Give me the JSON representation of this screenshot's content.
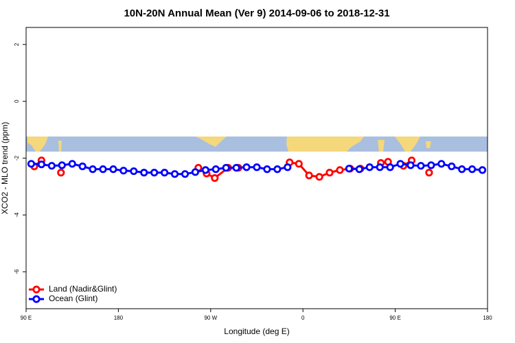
{
  "chart_data": {
    "type": "line",
    "title": "10N-20N Annual Mean (Ver 9)   2014-09-06 to 2018-12-31",
    "xlabel": "Longitude (deg E)",
    "ylabel": "XCO2 - MLO trend (ppm)",
    "xlim": [
      90,
      540
    ],
    "ylim": [
      -7.3,
      2.6
    ],
    "xticks": [
      {
        "value": 90,
        "label": "90 E"
      },
      180,
      {
        "value": 270,
        "label": "90 W"
      },
      {
        "value": 360,
        "label": "0"
      },
      {
        "value": 450,
        "label": "90 E"
      },
      {
        "value": 540,
        "label": "180"
      }
    ],
    "yticks": [
      2,
      0,
      -2,
      -4,
      -6
    ],
    "legend": "bottom-left",
    "series": [
      {
        "name": "Land (Nadir&Glint)",
        "color": "#ff0000",
        "x": [
          98,
          105,
          115,
          124,
          190,
          258,
          266,
          274,
          287,
          297,
          320,
          347,
          356,
          366,
          376,
          386,
          396,
          406,
          416,
          426,
          436,
          443,
          450,
          458,
          466,
          475,
          483
        ],
        "values": [
          -2.29,
          -2.08,
          null,
          -2.51,
          null,
          -2.34,
          -2.54,
          -2.7,
          -2.34,
          -2.34,
          null,
          -2.15,
          -2.2,
          -2.61,
          -2.66,
          -2.51,
          -2.42,
          -2.37,
          -2.37,
          null,
          -2.17,
          -2.13,
          null,
          -2.27,
          -2.08,
          null,
          -2.51
        ]
      },
      {
        "name": "Ocean (Glint)",
        "color": "#0000ff",
        "x": [
          95,
          105,
          115,
          125,
          135,
          145,
          155,
          165,
          175,
          185,
          195,
          205,
          215,
          225,
          235,
          245,
          255,
          265,
          275,
          285,
          295,
          305,
          315,
          325,
          335,
          345,
          375,
          405,
          415,
          425,
          435,
          445,
          455,
          465,
          475,
          485,
          495,
          505,
          515,
          525,
          535
        ],
        "values": [
          -2.2,
          -2.22,
          -2.27,
          -2.25,
          -2.2,
          -2.29,
          -2.39,
          -2.39,
          -2.39,
          -2.44,
          -2.46,
          -2.51,
          -2.51,
          -2.51,
          -2.56,
          -2.56,
          -2.49,
          -2.42,
          -2.39,
          -2.34,
          -2.34,
          -2.32,
          -2.32,
          -2.39,
          -2.39,
          -2.32,
          null,
          -2.37,
          -2.39,
          -2.32,
          -2.32,
          -2.32,
          -2.2,
          -2.25,
          -2.27,
          -2.25,
          -2.2,
          -2.29,
          -2.39,
          -2.39,
          -2.42
        ]
      }
    ]
  }
}
